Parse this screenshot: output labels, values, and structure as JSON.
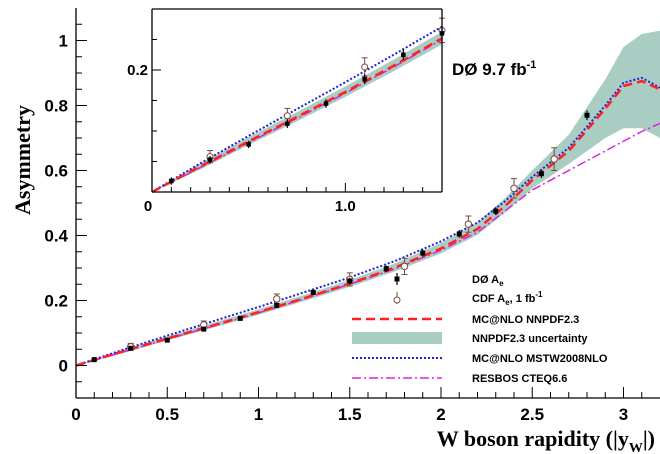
{
  "chart_data": {
    "type": "line",
    "xlabel": "W boson rapidity (|y",
    "xlabel_sub": "W",
    "xlabel_close": "|)",
    "ylabel": "Asymmetry",
    "annotation": "DØ 9.7 fb",
    "annotation_sup": "-1",
    "xlim": [
      0,
      3.2
    ],
    "ylim": [
      -0.1,
      1.1
    ],
    "x_ticks": [
      "0",
      "0.5",
      "1",
      "1.5",
      "2",
      "2.5",
      "3"
    ],
    "y_ticks": [
      "0",
      "0.2",
      "0.4",
      "0.6",
      "0.8",
      "1"
    ],
    "grid": false,
    "legend_position": "bottom-right",
    "colors": {
      "d0": "#000000",
      "cdf": "#7a4a3a",
      "mcnlo_nnpdf": "#ff2020",
      "nnpdf_band": "#a9cdc2",
      "mcnlo_mstw": "#2020e0",
      "resbos": "#dd22dd"
    },
    "legend": [
      {
        "key": "d0",
        "label": "DØ A",
        "sub": "e",
        "sup": ""
      },
      {
        "key": "cdf",
        "label": "CDF A",
        "sub": "e",
        "sup": "",
        "suffix": ", 1 fb",
        "suffix_sup": "-1"
      },
      {
        "key": "mcnlo_nnpdf",
        "label": "MC@NLO NNPDF2.3",
        "sub": "",
        "sup": ""
      },
      {
        "key": "nnpdf_band",
        "label": "NNPDF2.3 uncertainty",
        "sub": "",
        "sup": ""
      },
      {
        "key": "mcnlo_mstw",
        "label": "MC@NLO MSTW2008NLO",
        "sub": "",
        "sup": ""
      },
      {
        "key": "resbos",
        "label": "RESBOS CTEQ6.6",
        "sub": "",
        "sup": ""
      }
    ],
    "d0_points": [
      {
        "x": 0.1,
        "y": 0.018,
        "err": 0.006
      },
      {
        "x": 0.3,
        "y": 0.053,
        "err": 0.006
      },
      {
        "x": 0.5,
        "y": 0.078,
        "err": 0.006
      },
      {
        "x": 0.7,
        "y": 0.112,
        "err": 0.007
      },
      {
        "x": 0.9,
        "y": 0.145,
        "err": 0.007
      },
      {
        "x": 1.1,
        "y": 0.185,
        "err": 0.008
      },
      {
        "x": 1.3,
        "y": 0.225,
        "err": 0.009
      },
      {
        "x": 1.5,
        "y": 0.26,
        "err": 0.01
      },
      {
        "x": 1.7,
        "y": 0.298,
        "err": 0.01
      },
      {
        "x": 1.9,
        "y": 0.346,
        "err": 0.011
      },
      {
        "x": 2.1,
        "y": 0.405,
        "err": 0.012
      },
      {
        "x": 2.3,
        "y": 0.475,
        "err": 0.012
      },
      {
        "x": 2.55,
        "y": 0.59,
        "err": 0.013
      },
      {
        "x": 2.8,
        "y": 0.77,
        "err": 0.015
      }
    ],
    "cdf_points": [
      {
        "x": 0.3,
        "y": 0.058,
        "err": 0.01
      },
      {
        "x": 0.7,
        "y": 0.125,
        "err": 0.012
      },
      {
        "x": 1.1,
        "y": 0.205,
        "err": 0.015
      },
      {
        "x": 1.5,
        "y": 0.265,
        "err": 0.02
      },
      {
        "x": 1.8,
        "y": 0.305,
        "err": 0.025
      },
      {
        "x": 2.15,
        "y": 0.435,
        "err": 0.025
      },
      {
        "x": 2.4,
        "y": 0.545,
        "err": 0.03
      },
      {
        "x": 2.62,
        "y": 0.635,
        "err": 0.035
      }
    ],
    "curves": {
      "mcnlo_nnpdf": {
        "x": [
          0,
          0.25,
          0.5,
          0.75,
          1.0,
          1.25,
          1.5,
          1.75,
          2.0,
          2.2,
          2.35,
          2.5,
          2.7,
          2.9,
          3.0,
          3.1,
          3.2
        ],
        "y": [
          0.0,
          0.042,
          0.083,
          0.123,
          0.164,
          0.207,
          0.252,
          0.302,
          0.36,
          0.42,
          0.49,
          0.57,
          0.66,
          0.79,
          0.86,
          0.875,
          0.85
        ]
      },
      "nnpdf_band": {
        "x": [
          0,
          0.25,
          0.5,
          0.75,
          1.0,
          1.25,
          1.5,
          1.75,
          2.0,
          2.2,
          2.35,
          2.5,
          2.7,
          2.9,
          3.0,
          3.1,
          3.2
        ],
        "low": [
          0.0,
          0.037,
          0.077,
          0.116,
          0.156,
          0.198,
          0.242,
          0.29,
          0.345,
          0.402,
          0.47,
          0.545,
          0.62,
          0.7,
          0.73,
          0.73,
          0.7
        ],
        "high": [
          0.0,
          0.047,
          0.09,
          0.131,
          0.173,
          0.217,
          0.263,
          0.315,
          0.377,
          0.44,
          0.515,
          0.6,
          0.71,
          0.88,
          0.98,
          1.02,
          1.03
        ]
      },
      "mcnlo_mstw": {
        "x": [
          0,
          0.25,
          0.5,
          0.75,
          1.0,
          1.25,
          1.5,
          1.75,
          2.0,
          2.2,
          2.35,
          2.5,
          2.7,
          2.9,
          3.0,
          3.1,
          3.2
        ],
        "y": [
          0.0,
          0.047,
          0.092,
          0.136,
          0.18,
          0.225,
          0.271,
          0.322,
          0.382,
          0.44,
          0.505,
          0.58,
          0.67,
          0.8,
          0.87,
          0.885,
          0.855
        ]
      },
      "resbos": {
        "x": [
          0,
          0.25,
          0.5,
          0.75,
          1.0,
          1.25,
          1.5,
          1.75,
          2.0,
          2.2,
          2.35,
          2.5,
          2.7,
          2.9,
          3.0,
          3.1,
          3.2
        ],
        "y": [
          0.0,
          0.04,
          0.081,
          0.121,
          0.162,
          0.205,
          0.25,
          0.298,
          0.355,
          0.41,
          0.475,
          0.54,
          0.6,
          0.66,
          0.69,
          0.72,
          0.745
        ]
      }
    },
    "inset": {
      "xlim": [
        0,
        1.5
      ],
      "ylim": [
        0.0,
        0.3
      ],
      "x_ticks": [
        "0",
        "1.0"
      ],
      "y_ticks": [
        "0.2"
      ]
    }
  }
}
